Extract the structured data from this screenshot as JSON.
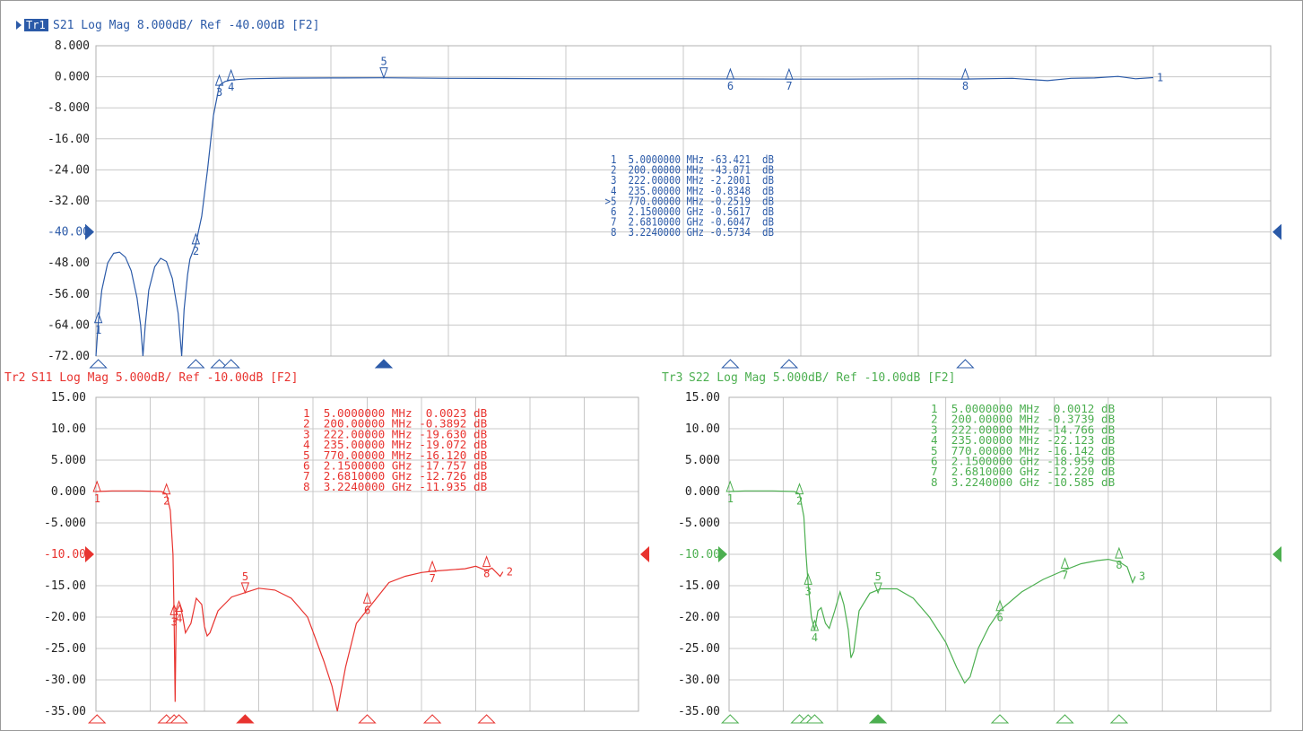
{
  "chart_data": [
    {
      "type": "line",
      "id": "tr1",
      "trace": "Tr1",
      "header": "S21 Log Mag 8.000dB/ Ref -40.00dB [F2]",
      "color": "#2b5aa8",
      "ylim": [
        -72,
        8
      ],
      "yticks": [
        "8.000",
        "0.000",
        "-8.000",
        "-16.00",
        "-24.00",
        "-32.00",
        "-40.00",
        "-48.00",
        "-56.00",
        "-64.00",
        "-72.00"
      ],
      "ref_tick": "-40.00",
      "ref_value": -40,
      "end_label": "1",
      "x_divisions": 10,
      "points": [
        [
          0,
          -72
        ],
        [
          0.02,
          -63.4
        ],
        [
          0.05,
          -55
        ],
        [
          0.1,
          -48
        ],
        [
          0.15,
          -45.5
        ],
        [
          0.2,
          -45.2
        ],
        [
          0.25,
          -46.5
        ],
        [
          0.3,
          -50
        ],
        [
          0.35,
          -57
        ],
        [
          0.38,
          -64
        ],
        [
          0.4,
          -72
        ],
        [
          0.42,
          -64
        ],
        [
          0.45,
          -55
        ],
        [
          0.5,
          -49
        ],
        [
          0.55,
          -46.8
        ],
        [
          0.6,
          -47.6
        ],
        [
          0.65,
          -52
        ],
        [
          0.7,
          -61
        ],
        [
          0.73,
          -72
        ],
        [
          0.75,
          -60
        ],
        [
          0.78,
          -51
        ],
        [
          0.8,
          -47
        ],
        [
          0.85,
          -43.07
        ],
        [
          0.9,
          -36
        ],
        [
          0.95,
          -24
        ],
        [
          1.0,
          -10
        ],
        [
          1.05,
          -2.2
        ],
        [
          1.1,
          -1.2
        ],
        [
          1.15,
          -0.83
        ],
        [
          1.3,
          -0.5
        ],
        [
          1.6,
          -0.35
        ],
        [
          2.0,
          -0.3
        ],
        [
          2.45,
          -0.25
        ],
        [
          3.0,
          -0.4
        ],
        [
          3.5,
          -0.45
        ],
        [
          4.0,
          -0.5
        ],
        [
          4.5,
          -0.5
        ],
        [
          5.0,
          -0.5
        ],
        [
          5.4,
          -0.56
        ],
        [
          5.9,
          -0.6
        ],
        [
          6.4,
          -0.6
        ],
        [
          7.0,
          -0.5
        ],
        [
          7.4,
          -0.57
        ],
        [
          7.8,
          -0.4
        ],
        [
          8.1,
          -1.0
        ],
        [
          8.3,
          -0.4
        ],
        [
          8.5,
          -0.3
        ],
        [
          8.7,
          0.1
        ],
        [
          8.85,
          -0.5
        ],
        [
          9.0,
          -0.2
        ]
      ],
      "markers": [
        {
          "n": "1",
          "x": 0.02,
          "y": -63.4,
          "label_below": true
        },
        {
          "n": "2",
          "x": 0.85,
          "y": -43.07,
          "label_below": true
        },
        {
          "n": "3",
          "x": 1.05,
          "y": -2.2,
          "label_below": true
        },
        {
          "n": "4",
          "x": 1.15,
          "y": -0.83,
          "label_below": true
        },
        {
          "n": "5",
          "x": 2.45,
          "y": -0.25,
          "label_below": false
        },
        {
          "n": "6",
          "x": 5.4,
          "y": -0.56,
          "label_below": true
        },
        {
          "n": "7",
          "x": 5.9,
          "y": -0.6,
          "label_below": true
        },
        {
          "n": "8",
          "x": 7.4,
          "y": -0.57,
          "label_below": true
        }
      ],
      "active_marker": "5",
      "readout": [
        "  1  5.0000000 MHz -63.421  dB",
        "  2  200.00000 MHz -43.071  dB",
        "  3  222.00000 MHz -2.2001  dB",
        "  4  235.00000 MHz -0.8348  dB",
        " >5  770.00000 MHz -0.2519  dB",
        "  6  2.1500000 GHz -0.5617  dB",
        "  7  2.6810000 GHz -0.6047  dB",
        "  8  3.2240000 GHz -0.5734  dB"
      ]
    },
    {
      "type": "line",
      "id": "tr2",
      "trace": "Tr2",
      "header": "S11 Log Mag 5.000dB/ Ref -10.00dB [F2]",
      "color": "#e8332f",
      "ylim": [
        -35,
        15
      ],
      "yticks": [
        "15.00",
        "10.00",
        "5.000",
        "0.000",
        "-5.000",
        "-10.00",
        "-15.00",
        "-20.00",
        "-25.00",
        "-30.00",
        "-35.00"
      ],
      "ref_tick": "-10.00",
      "ref_value": -10,
      "end_label": "2",
      "x_divisions": 10,
      "points": [
        [
          0,
          0
        ],
        [
          0.3,
          0.1
        ],
        [
          0.8,
          0.1
        ],
        [
          1.2,
          0
        ],
        [
          1.3,
          -0.39
        ],
        [
          1.37,
          -3
        ],
        [
          1.42,
          -10
        ],
        [
          1.44,
          -19.6
        ],
        [
          1.46,
          -33.5
        ],
        [
          1.48,
          -19.07
        ],
        [
          1.55,
          -18
        ],
        [
          1.6,
          -20
        ],
        [
          1.65,
          -22.5
        ],
        [
          1.75,
          -21
        ],
        [
          1.85,
          -17
        ],
        [
          1.95,
          -18
        ],
        [
          2.0,
          -21.5
        ],
        [
          2.05,
          -23
        ],
        [
          2.1,
          -22.5
        ],
        [
          2.25,
          -19
        ],
        [
          2.5,
          -16.8
        ],
        [
          2.75,
          -16.1
        ],
        [
          3.0,
          -15.4
        ],
        [
          3.3,
          -15.7
        ],
        [
          3.6,
          -17
        ],
        [
          3.9,
          -20
        ],
        [
          4.2,
          -27
        ],
        [
          4.35,
          -31
        ],
        [
          4.45,
          -35
        ],
        [
          4.6,
          -28
        ],
        [
          4.8,
          -21
        ],
        [
          5.1,
          -17.75
        ],
        [
          5.4,
          -14.5
        ],
        [
          5.7,
          -13.5
        ],
        [
          6.0,
          -12.9
        ],
        [
          6.2,
          -12.7
        ],
        [
          6.5,
          -12.5
        ],
        [
          6.8,
          -12.3
        ],
        [
          7.0,
          -11.9
        ],
        [
          7.2,
          -12.6
        ],
        [
          7.3,
          -12.2
        ],
        [
          7.45,
          -13.5
        ],
        [
          7.5,
          -12.8
        ]
      ],
      "markers": [
        {
          "n": "1",
          "x": 0.02,
          "y": 0.0,
          "label_below": true
        },
        {
          "n": "2",
          "x": 1.3,
          "y": -0.39,
          "label_below": true
        },
        {
          "n": "3",
          "x": 1.44,
          "y": -19.63,
          "label_below": true
        },
        {
          "n": "4",
          "x": 1.53,
          "y": -19.07,
          "label_below": true
        },
        {
          "n": "5",
          "x": 2.75,
          "y": -16.12,
          "label_below": false
        },
        {
          "n": "6",
          "x": 5.0,
          "y": -17.76,
          "label_below": true
        },
        {
          "n": "7",
          "x": 6.2,
          "y": -12.73,
          "label_below": true
        },
        {
          "n": "8",
          "x": 7.2,
          "y": -11.94,
          "label_below": true
        }
      ],
      "active_marker": "5",
      "readout": [
        "1  5.0000000 MHz  0.0023 dB",
        "2  200.00000 MHz -0.3892 dB",
        "3  222.00000 MHz -19.630 dB",
        "4  235.00000 MHz -19.072 dB",
        "5  770.00000 MHz -16.120 dB",
        "6  2.1500000 GHz -17.757 dB",
        "7  2.6810000 GHz -12.726 dB",
        "8  3.2240000 GHz -11.935 dB"
      ]
    },
    {
      "type": "line",
      "id": "tr3",
      "trace": "Tr3",
      "header": "S22 Log Mag 5.000dB/ Ref -10.00dB [F2]",
      "color": "#4caf50",
      "ylim": [
        -35,
        15
      ],
      "yticks": [
        "15.00",
        "10.00",
        "5.000",
        "0.000",
        "-5.000",
        "-10.00",
        "-15.00",
        "-20.00",
        "-25.00",
        "-30.00",
        "-35.00"
      ],
      "ref_tick": "-10.00",
      "ref_value": -10,
      "end_label": "3",
      "x_divisions": 10,
      "points": [
        [
          0,
          0
        ],
        [
          0.3,
          0.1
        ],
        [
          0.8,
          0.1
        ],
        [
          1.2,
          0
        ],
        [
          1.3,
          -0.37
        ],
        [
          1.38,
          -4
        ],
        [
          1.42,
          -10
        ],
        [
          1.46,
          -14.77
        ],
        [
          1.52,
          -20
        ],
        [
          1.58,
          -22.12
        ],
        [
          1.64,
          -19
        ],
        [
          1.7,
          -18.5
        ],
        [
          1.78,
          -21
        ],
        [
          1.85,
          -21.8
        ],
        [
          1.95,
          -19
        ],
        [
          2.05,
          -16
        ],
        [
          2.12,
          -18
        ],
        [
          2.2,
          -22
        ],
        [
          2.25,
          -26.5
        ],
        [
          2.3,
          -25.5
        ],
        [
          2.4,
          -19
        ],
        [
          2.6,
          -16.2
        ],
        [
          2.8,
          -15.5
        ],
        [
          3.1,
          -15.5
        ],
        [
          3.4,
          -17
        ],
        [
          3.7,
          -20
        ],
        [
          4.0,
          -24
        ],
        [
          4.2,
          -28
        ],
        [
          4.35,
          -30.5
        ],
        [
          4.45,
          -29.5
        ],
        [
          4.6,
          -25
        ],
        [
          4.8,
          -21.5
        ],
        [
          5.0,
          -18.96
        ],
        [
          5.4,
          -16
        ],
        [
          5.8,
          -14
        ],
        [
          6.2,
          -12.5
        ],
        [
          6.5,
          -11.5
        ],
        [
          6.8,
          -11
        ],
        [
          7.0,
          -10.8
        ],
        [
          7.2,
          -11.2
        ],
        [
          7.35,
          -12
        ],
        [
          7.45,
          -14.5
        ],
        [
          7.5,
          -13.5
        ]
      ],
      "markers": [
        {
          "n": "1",
          "x": 0.02,
          "y": 0.0,
          "label_below": true
        },
        {
          "n": "2",
          "x": 1.3,
          "y": -0.37,
          "label_below": true
        },
        {
          "n": "3",
          "x": 1.46,
          "y": -14.77,
          "label_below": true
        },
        {
          "n": "4",
          "x": 1.58,
          "y": -22.12,
          "label_below": true
        },
        {
          "n": "5",
          "x": 2.75,
          "y": -16.14,
          "label_below": false
        },
        {
          "n": "6",
          "x": 5.0,
          "y": -18.96,
          "label_below": true
        },
        {
          "n": "7",
          "x": 6.2,
          "y": -12.22,
          "label_below": true
        },
        {
          "n": "8",
          "x": 7.2,
          "y": -10.59,
          "label_below": true
        }
      ],
      "active_marker": "5",
      "readout": [
        "1  5.0000000 MHz  0.0012 dB",
        "2  200.00000 MHz -0.3739 dB",
        "3  222.00000 MHz -14.766 dB",
        "4  235.00000 MHz -22.123 dB",
        "5  770.00000 MHz -16.142 dB",
        "6  2.1500000 GHz -18.959 dB",
        "7  2.6810000 GHz -12.220 dB",
        "8  3.2240000 GHz -10.585 dB"
      ]
    }
  ]
}
